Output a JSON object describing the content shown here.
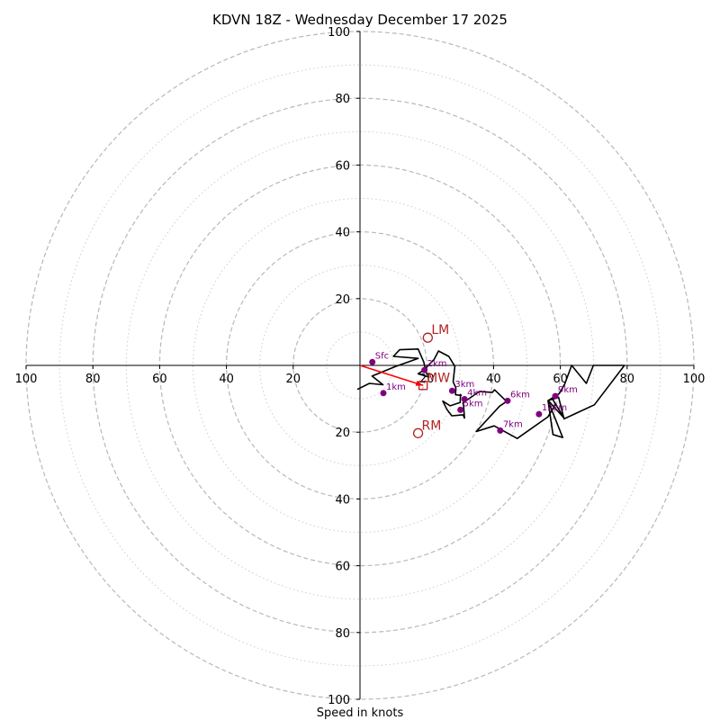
{
  "chart_data": {
    "type": "hodograph",
    "title": "KDVN 18Z - Wednesday December 17 2025",
    "xlabel": "Speed in knots",
    "units": "knots",
    "range": [
      -100,
      100
    ],
    "major_rings": [
      20,
      40,
      60,
      80,
      100
    ],
    "minor_rings": [
      10,
      30,
      50,
      70,
      90
    ],
    "x_ticks": [
      "100",
      "80",
      "60",
      "40",
      "20",
      "20",
      "40",
      "60",
      "80",
      "100"
    ],
    "y_ticks": [
      "100",
      "80",
      "60",
      "40",
      "20",
      "20",
      "40",
      "60",
      "80",
      "100"
    ],
    "x_tick_values": [
      -100,
      -80,
      -60,
      -40,
      -20,
      20,
      40,
      60,
      80,
      100
    ],
    "y_tick_values": [
      100,
      80,
      60,
      40,
      20,
      -20,
      -40,
      -60,
      -80,
      -100
    ],
    "colors": {
      "trace": "#000000",
      "height_points": "#800080",
      "motion": "#b22222",
      "shear_arrow": "#ff0000",
      "major_grid": "#b8b8b8",
      "minor_grid": "#cccccc"
    },
    "hodograph_trace": [
      [
        -0.8,
        -7.2
      ],
      [
        2.8,
        -5.4
      ],
      [
        6.9,
        -5.8
      ],
      [
        3.6,
        -3.2
      ],
      [
        10.7,
        -0.3
      ],
      [
        17.4,
        2.1
      ],
      [
        10.0,
        2.7
      ],
      [
        11.9,
        4.7
      ],
      [
        17.4,
        4.9
      ],
      [
        19.1,
        1.0
      ],
      [
        19.7,
        -1.9
      ],
      [
        20.7,
        -3.5
      ],
      [
        17.4,
        -2.5
      ],
      [
        19.1,
        -1.4
      ],
      [
        22.2,
        1.8
      ],
      [
        23.5,
        4.3
      ],
      [
        26.6,
        2.7
      ],
      [
        28.4,
        -0.3
      ],
      [
        27.9,
        -4.9
      ],
      [
        28.7,
        -6.7
      ],
      [
        28.6,
        -8.8
      ],
      [
        30.3,
        -9.0
      ],
      [
        30.1,
        -8.7
      ],
      [
        30.0,
        -11.1
      ],
      [
        27.0,
        -12.1
      ],
      [
        24.8,
        -10.7
      ],
      [
        26.1,
        -13.3
      ],
      [
        27.5,
        -15.1
      ],
      [
        30.9,
        -14.8
      ],
      [
        31.3,
        -15.8
      ],
      [
        31.0,
        -11.7
      ],
      [
        30.8,
        -11.2
      ],
      [
        35.8,
        -7.8
      ],
      [
        39.6,
        -8.1
      ],
      [
        40.3,
        -7.3
      ],
      [
        43.9,
        -10.8
      ],
      [
        41.8,
        -12.2
      ],
      [
        34.8,
        -19.8
      ],
      [
        40.2,
        -18.1
      ],
      [
        42.9,
        -19.6
      ],
      [
        47.1,
        -21.9
      ],
      [
        56.3,
        -15.4
      ],
      [
        58.6,
        -11.6
      ],
      [
        57.6,
        -10.0
      ],
      [
        61.2,
        -15.9
      ],
      [
        56.4,
        -10.5
      ],
      [
        59.7,
        -8.4
      ],
      [
        61.3,
        -5.6
      ],
      [
        63.4,
        -0.0
      ],
      [
        67.8,
        -5.4
      ],
      [
        69.9,
        -0.0
      ],
      [
        79.2,
        0.0
      ],
      [
        70.2,
        -11.8
      ],
      [
        61.1,
        -16.0
      ],
      [
        59.5,
        -9.6
      ],
      [
        56.3,
        -10.5
      ],
      [
        56.3,
        -10.5
      ],
      [
        57.8,
        -20.7
      ],
      [
        60.7,
        -21.6
      ],
      [
        56.3,
        -10.5
      ]
    ],
    "height_points": [
      {
        "label": "Sfc",
        "u": 3.7,
        "v": 1.0
      },
      {
        "label": "1km",
        "u": 7.0,
        "v": -8.3
      },
      {
        "label": "2km",
        "u": 19.3,
        "v": -1.4
      },
      {
        "label": "3km",
        "u": 27.6,
        "v": -7.6
      },
      {
        "label": "4km",
        "u": 31.3,
        "v": -10.1
      },
      {
        "label": "5km",
        "u": 30.1,
        "v": -13.3
      },
      {
        "label": "6km",
        "u": 44.2,
        "v": -10.6
      },
      {
        "label": "7km",
        "u": 42.0,
        "v": -19.5
      },
      {
        "label": "9km",
        "u": 58.5,
        "v": -9.2
      },
      {
        "label": "12km",
        "u": 53.6,
        "v": -14.6
      }
    ],
    "storm_motions": [
      {
        "label": "LM",
        "u": 20.3,
        "v": 8.3,
        "marker": "circle"
      },
      {
        "label": "MW",
        "u": 18.9,
        "v": -6.0,
        "marker": "square"
      },
      {
        "label": "RM",
        "u": 17.4,
        "v": -20.3,
        "marker": "circle"
      }
    ],
    "shear_vector": {
      "from": [
        0,
        0
      ],
      "to": [
        18.9,
        -6.0
      ]
    }
  }
}
